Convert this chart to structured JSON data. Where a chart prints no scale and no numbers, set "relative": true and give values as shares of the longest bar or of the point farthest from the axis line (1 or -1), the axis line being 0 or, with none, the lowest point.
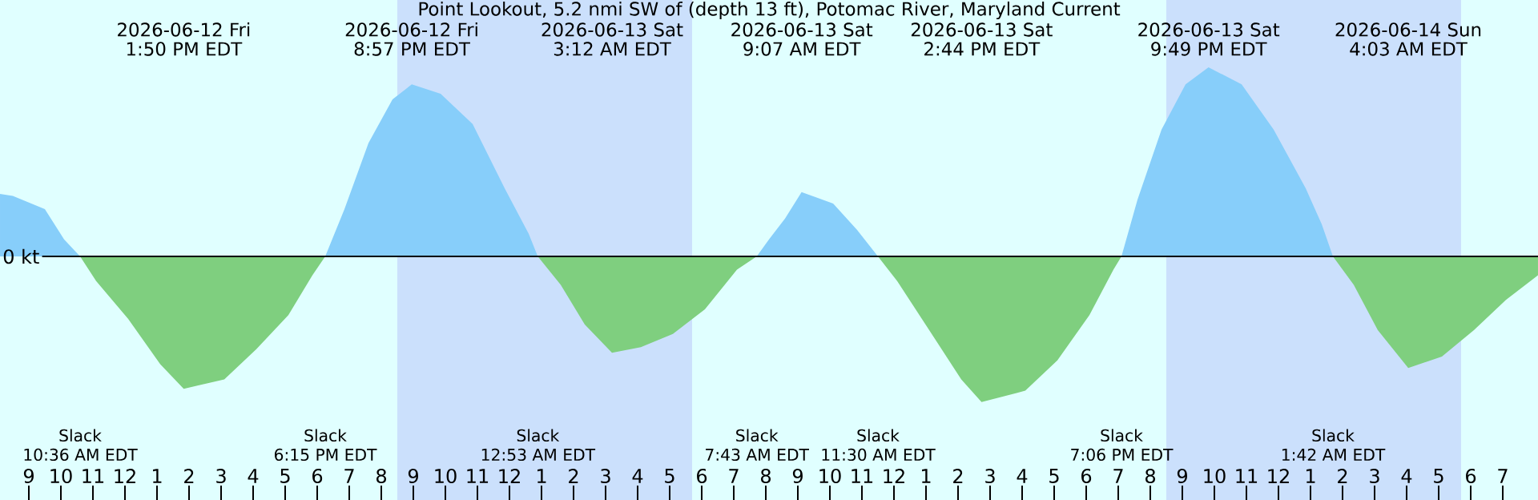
{
  "chart_data": {
    "type": "area",
    "relative": true,
    "title": "Point Lookout, 5.2 nmi SW of (depth 13 ft), Potomac River, Maryland Current",
    "xlim": [
      "2026-06-12T08:06",
      "2026-06-14T08:06"
    ],
    "xticks": [
      {
        "value": "2026-06-12T09:00",
        "label": "9"
      },
      {
        "value": "2026-06-12T10:00",
        "label": "10"
      },
      {
        "value": "2026-06-12T11:00",
        "label": "11"
      },
      {
        "value": "2026-06-12T12:00",
        "label": "12"
      },
      {
        "value": "2026-06-12T13:00",
        "label": "1"
      },
      {
        "value": "2026-06-12T14:00",
        "label": "2"
      },
      {
        "value": "2026-06-12T15:00",
        "label": "3"
      },
      {
        "value": "2026-06-12T16:00",
        "label": "4"
      },
      {
        "value": "2026-06-12T17:00",
        "label": "5"
      },
      {
        "value": "2026-06-12T18:00",
        "label": "6"
      },
      {
        "value": "2026-06-12T19:00",
        "label": "7"
      },
      {
        "value": "2026-06-12T20:00",
        "label": "8"
      },
      {
        "value": "2026-06-12T21:00",
        "label": "9"
      },
      {
        "value": "2026-06-12T22:00",
        "label": "10"
      },
      {
        "value": "2026-06-12T23:00",
        "label": "11"
      },
      {
        "value": "2026-06-13T00:00",
        "label": "12"
      },
      {
        "value": "2026-06-13T01:00",
        "label": "1"
      },
      {
        "value": "2026-06-13T02:00",
        "label": "2"
      },
      {
        "value": "2026-06-13T03:00",
        "label": "3"
      },
      {
        "value": "2026-06-13T04:00",
        "label": "4"
      },
      {
        "value": "2026-06-13T05:00",
        "label": "5"
      },
      {
        "value": "2026-06-13T06:00",
        "label": "6"
      },
      {
        "value": "2026-06-13T07:00",
        "label": "7"
      },
      {
        "value": "2026-06-13T08:00",
        "label": "8"
      },
      {
        "value": "2026-06-13T09:00",
        "label": "9"
      },
      {
        "value": "2026-06-13T10:00",
        "label": "10"
      },
      {
        "value": "2026-06-13T11:00",
        "label": "11"
      },
      {
        "value": "2026-06-13T12:00",
        "label": "12"
      },
      {
        "value": "2026-06-13T13:00",
        "label": "1"
      },
      {
        "value": "2026-06-13T14:00",
        "label": "2"
      },
      {
        "value": "2026-06-13T15:00",
        "label": "3"
      },
      {
        "value": "2026-06-13T16:00",
        "label": "4"
      },
      {
        "value": "2026-06-13T17:00",
        "label": "5"
      },
      {
        "value": "2026-06-13T18:00",
        "label": "6"
      },
      {
        "value": "2026-06-13T19:00",
        "label": "7"
      },
      {
        "value": "2026-06-13T20:00",
        "label": "8"
      },
      {
        "value": "2026-06-13T21:00",
        "label": "9"
      },
      {
        "value": "2026-06-13T22:00",
        "label": "10"
      },
      {
        "value": "2026-06-13T23:00",
        "label": "11"
      },
      {
        "value": "2026-06-14T00:00",
        "label": "12"
      },
      {
        "value": "2026-06-14T01:00",
        "label": "1"
      },
      {
        "value": "2026-06-14T02:00",
        "label": "2"
      },
      {
        "value": "2026-06-14T03:00",
        "label": "3"
      },
      {
        "value": "2026-06-14T04:00",
        "label": "4"
      },
      {
        "value": "2026-06-14T05:00",
        "label": "5"
      },
      {
        "value": "2026-06-14T06:00",
        "label": "6"
      },
      {
        "value": "2026-06-14T07:00",
        "label": "7"
      }
    ],
    "series": [
      {
        "color": "#87cefa",
        "x": [
          "2026-06-12T08:06",
          "2026-06-12T08:30",
          "2026-06-12T09:30",
          "2026-06-12T10:06",
          "2026-06-12T10:36",
          "2026-06-12T18:15",
          "2026-06-12T18:51",
          "2026-06-12T19:36",
          "2026-06-12T20:21",
          "2026-06-12T20:57",
          "2026-06-12T21:51",
          "2026-06-12T22:51",
          "2026-06-12T23:51",
          "2026-06-13T00:36",
          "2026-06-13T00:53",
          "2026-06-13T07:43",
          "2026-06-13T08:06",
          "2026-06-13T08:36",
          "2026-06-13T09:07",
          "2026-06-13T10:06",
          "2026-06-13T10:51",
          "2026-06-13T11:30",
          "2026-06-13T19:06",
          "2026-06-13T19:36",
          "2026-06-13T20:21",
          "2026-06-13T21:06",
          "2026-06-13T21:49",
          "2026-06-13T22:51",
          "2026-06-13T23:51",
          "2026-06-14T00:51",
          "2026-06-14T01:21",
          "2026-06-14T01:42",
          "2026-06-14T08:06"
        ],
        "values": [
          0.33,
          0.32,
          0.25,
          0.09,
          0,
          0,
          0.25,
          0.6,
          0.83,
          0.91,
          0.86,
          0.7,
          0.36,
          0.12,
          0,
          0,
          0.09,
          0.2,
          0.34,
          0.28,
          0.14,
          0,
          0,
          0.3,
          0.67,
          0.91,
          1,
          0.91,
          0.67,
          0.36,
          0.17,
          0,
          0
        ]
      },
      {
        "color": "#7fcf7f",
        "x": [
          "2026-06-12T08:06",
          "2026-06-12T10:36",
          "2026-06-12T11:06",
          "2026-06-12T12:06",
          "2026-06-12T13:06",
          "2026-06-12T13:50",
          "2026-06-12T15:06",
          "2026-06-12T16:06",
          "2026-06-12T17:06",
          "2026-06-12T17:51",
          "2026-06-12T18:15",
          "2026-06-13T00:53",
          "2026-06-13T01:36",
          "2026-06-13T02:21",
          "2026-06-13T03:12",
          "2026-06-13T04:06",
          "2026-06-13T05:06",
          "2026-06-13T06:06",
          "2026-06-13T07:06",
          "2026-06-13T07:43",
          "2026-06-13T11:30",
          "2026-06-13T12:06",
          "2026-06-13T13:06",
          "2026-06-13T14:06",
          "2026-06-13T14:44",
          "2026-06-13T16:06",
          "2026-06-13T17:06",
          "2026-06-13T18:06",
          "2026-06-13T18:51",
          "2026-06-13T19:06",
          "2026-06-14T01:42",
          "2026-06-14T02:21",
          "2026-06-14T03:06",
          "2026-06-14T04:03",
          "2026-06-14T05:06",
          "2026-06-14T06:06",
          "2026-06-14T07:06",
          "2026-06-14T08:06"
        ],
        "values": [
          0,
          0,
          -0.13,
          -0.33,
          -0.57,
          -0.7,
          -0.65,
          -0.49,
          -0.31,
          -0.1,
          0,
          0,
          -0.15,
          -0.36,
          -0.51,
          -0.48,
          -0.41,
          -0.28,
          -0.07,
          0,
          0,
          -0.13,
          -0.39,
          -0.65,
          -0.77,
          -0.71,
          -0.55,
          -0.31,
          -0.07,
          0,
          0,
          -0.15,
          -0.39,
          -0.59,
          -0.53,
          -0.39,
          -0.23,
          -0.1
        ]
      }
    ],
    "ref_lines": [
      {
        "axis": "y",
        "value": 0,
        "label": "0 kt",
        "color": "#000000"
      }
    ],
    "bands": [
      {
        "axis": "x",
        "from": "2026-06-12T20:30",
        "to": "2026-06-13T05:42",
        "color": "#cbe0fc"
      },
      {
        "axis": "x",
        "from": "2026-06-13T20:30",
        "to": "2026-06-14T05:42",
        "color": "#cbe0fc"
      }
    ],
    "annotations": [
      "2026-06-12 Fri",
      "1:50 PM EDT",
      "2026-06-12 Fri",
      "8:57 PM EDT",
      "2026-06-13 Sat",
      "3:12 AM EDT",
      "2026-06-13 Sat",
      "9:07 AM EDT",
      "2026-06-13 Sat",
      "2:44 PM EDT",
      "2026-06-13 Sat",
      "9:49 PM EDT",
      "2026-06-14 Sun",
      "4:03 AM EDT",
      "Slack",
      "10:36 AM EDT",
      "Slack",
      "6:15 PM EDT",
      "Slack",
      "12:53 AM EDT",
      "Slack",
      "7:43 AM EDT",
      "Slack",
      "11:30 AM EDT",
      "Slack",
      "7:06 PM EDT",
      "Slack",
      "1:42 AM EDT"
    ]
  }
}
